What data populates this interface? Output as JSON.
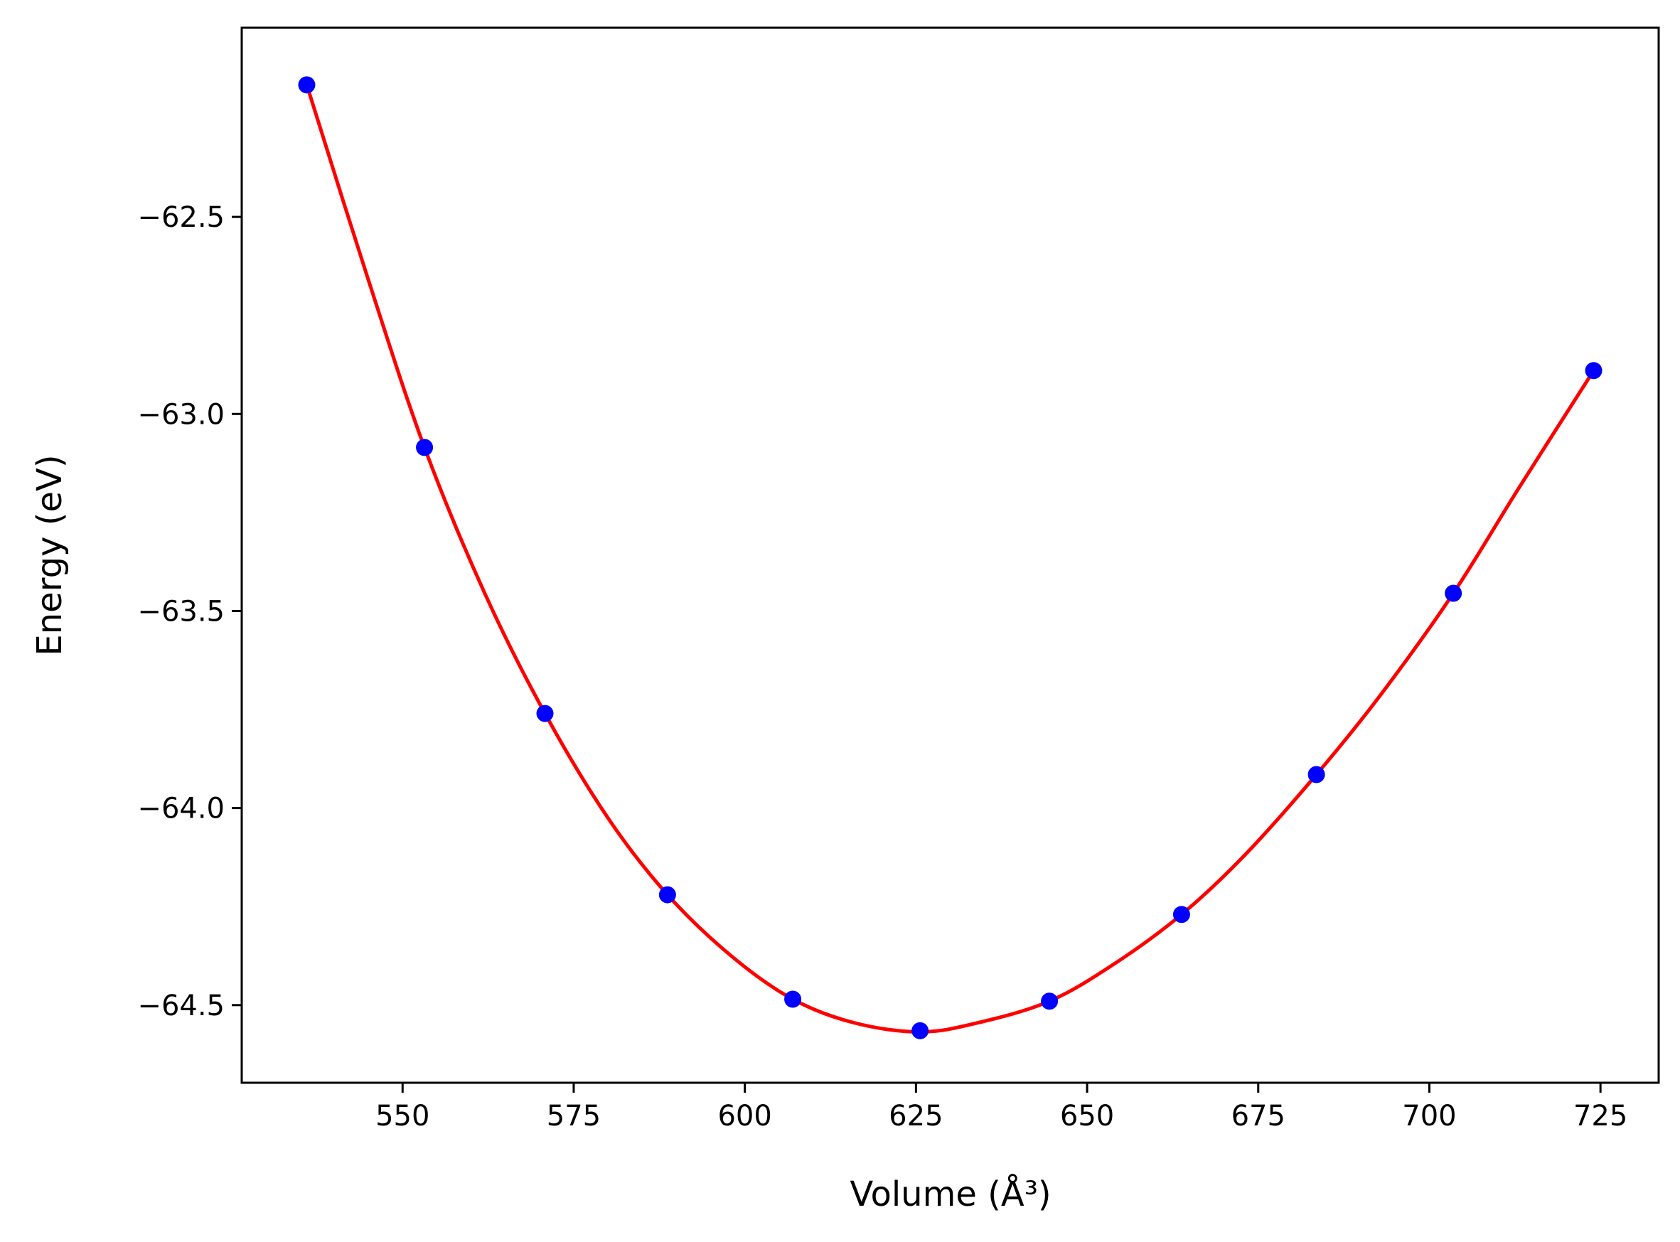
{
  "chart_data": {
    "type": "scatter",
    "title": "",
    "xlabel": "Volume (Å³)",
    "ylabel": "Energy (eV)",
    "xlim": [
      526.5,
      733.5
    ],
    "ylim": [
      -64.697,
      -62.02
    ],
    "xticks": [
      550,
      575,
      600,
      625,
      650,
      675,
      700,
      725
    ],
    "yticks": [
      -64.5,
      -64.0,
      -63.5,
      -63.0,
      -62.5
    ],
    "xtick_labels": [
      "550",
      "575",
      "600",
      "625",
      "650",
      "675",
      "700",
      "725"
    ],
    "ytick_labels": [
      "−64.5",
      "−64.0",
      "−63.5",
      "−63.0",
      "−62.5"
    ],
    "grid": false,
    "legend": "none",
    "series": [
      {
        "kind": "points",
        "color": "#0000ff",
        "x": [
          536.0,
          553.2,
          570.8,
          588.7,
          607.0,
          625.6,
          644.5,
          663.8,
          683.5,
          703.5,
          724.0
        ],
        "y": [
          -62.165,
          -63.085,
          -63.76,
          -64.22,
          -64.485,
          -64.565,
          -64.49,
          -64.27,
          -63.915,
          -63.455,
          -62.89
        ]
      },
      {
        "kind": "fit-curve",
        "color": "#ff0000",
        "x": [
          536,
          545,
          553.2,
          562,
          570.8,
          580,
          588.7,
          598,
          607,
          616,
          625.6,
          634,
          644.5,
          654,
          663.8,
          673,
          683.5,
          693,
          703.5,
          713,
          724
        ],
        "y": [
          -62.165,
          -62.66,
          -63.085,
          -63.455,
          -63.76,
          -64.025,
          -64.22,
          -64.375,
          -64.485,
          -64.545,
          -64.568,
          -64.545,
          -64.49,
          -64.395,
          -64.27,
          -64.12,
          -63.915,
          -63.71,
          -63.455,
          -63.19,
          -62.89
        ]
      }
    ]
  }
}
